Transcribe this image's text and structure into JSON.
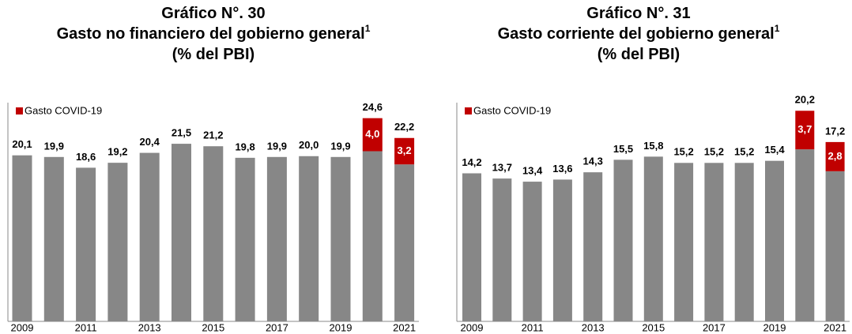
{
  "chart_data": [
    {
      "type": "bar",
      "stacked": true,
      "title": [
        "Gráfico N°. 30",
        "Gasto no financiero del gobierno general",
        "(% del PBI)"
      ],
      "title_note": "1",
      "categories": [
        "2009",
        null,
        "2011",
        null,
        "2013",
        null,
        "2015",
        null,
        "2017",
        null,
        "2019",
        null,
        "2021"
      ],
      "series": [
        {
          "color": "#878787",
          "values": [
            20.1,
            19.9,
            18.6,
            19.2,
            20.4,
            21.5,
            21.2,
            19.8,
            19.9,
            20.0,
            19.9,
            20.6,
            19.0
          ],
          "value_labels": [
            "20,1",
            "19,9",
            "18,6",
            "19,2",
            "20,4",
            "21,5",
            "21,2",
            "19,8",
            "19,9",
            "20,0",
            "19,9",
            null,
            null
          ]
        },
        {
          "name": "Gasto COVID-19",
          "color": "#c00000",
          "values": [
            null,
            null,
            null,
            null,
            null,
            null,
            null,
            null,
            null,
            null,
            null,
            4.0,
            3.2
          ],
          "value_labels": [
            null,
            null,
            null,
            null,
            null,
            null,
            null,
            null,
            null,
            null,
            null,
            "4,0",
            "3,2"
          ]
        }
      ],
      "totals": [
        null,
        null,
        null,
        null,
        null,
        null,
        null,
        null,
        null,
        null,
        null,
        24.6,
        22.2
      ],
      "total_labels": [
        null,
        null,
        null,
        null,
        null,
        null,
        null,
        null,
        null,
        null,
        null,
        "24,6",
        "22,2"
      ],
      "ylim": [
        0,
        26
      ],
      "legend": "top-left"
    },
    {
      "type": "bar",
      "stacked": true,
      "title": [
        "Gráfico N°. 31",
        "Gasto corriente del gobierno general",
        "(% del PBI)"
      ],
      "title_note": "1",
      "categories": [
        "2009",
        null,
        "2011",
        null,
        "2013",
        null,
        "2015",
        null,
        "2017",
        null,
        "2019",
        null,
        "2021"
      ],
      "series": [
        {
          "color": "#878787",
          "values": [
            14.2,
            13.7,
            13.4,
            13.6,
            14.3,
            15.5,
            15.8,
            15.2,
            15.2,
            15.2,
            15.4,
            16.5,
            14.4
          ],
          "value_labels": [
            "14,2",
            "13,7",
            "13,4",
            "13,6",
            "14,3",
            "15,5",
            "15,8",
            "15,2",
            "15,2",
            "15,2",
            "15,4",
            null,
            null
          ]
        },
        {
          "name": "Gasto COVID-19",
          "color": "#c00000",
          "values": [
            null,
            null,
            null,
            null,
            null,
            null,
            null,
            null,
            null,
            null,
            null,
            3.7,
            2.8
          ],
          "value_labels": [
            null,
            null,
            null,
            null,
            null,
            null,
            null,
            null,
            null,
            null,
            null,
            "3,7",
            "2,8"
          ]
        }
      ],
      "totals": [
        null,
        null,
        null,
        null,
        null,
        null,
        null,
        null,
        null,
        null,
        null,
        20.2,
        17.2
      ],
      "total_labels": [
        null,
        null,
        null,
        null,
        null,
        null,
        null,
        null,
        null,
        null,
        null,
        "20,2",
        "17,2"
      ],
      "ylim": [
        0,
        20.6
      ],
      "legend": "top-left"
    }
  ]
}
